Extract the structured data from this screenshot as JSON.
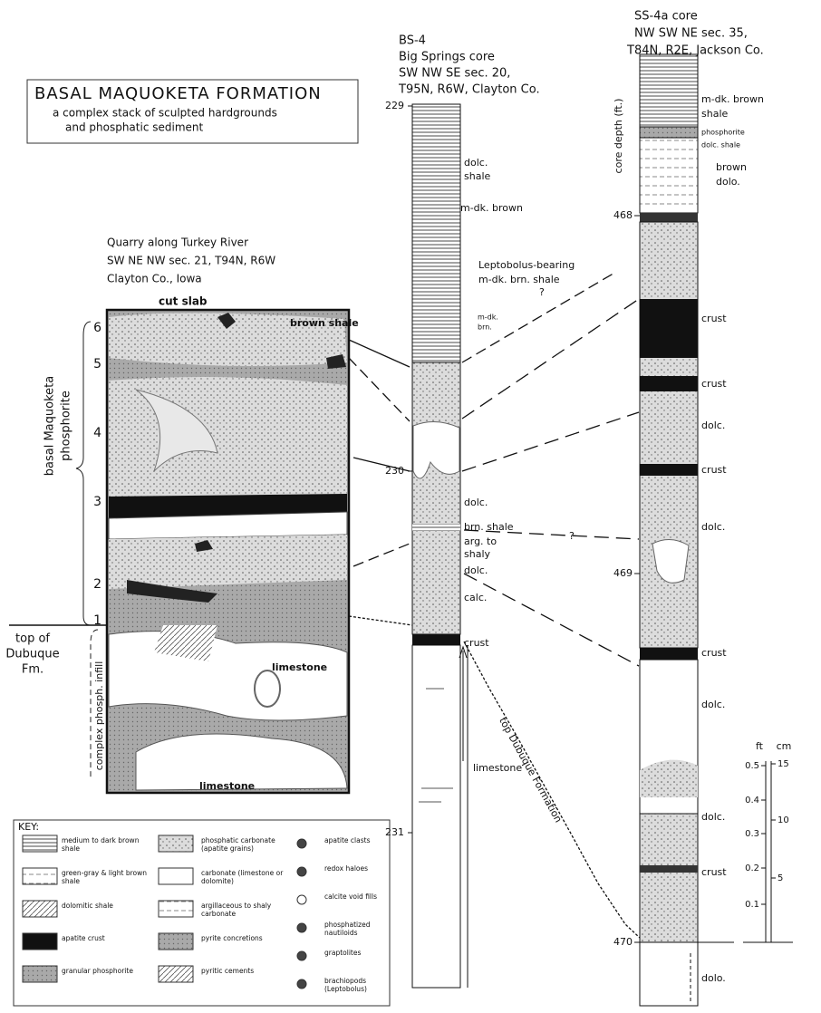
{
  "title_box": {
    "heading": "BASAL MAQUOKETA FORMATION",
    "lines": [
      "a complex stack of sculpted hardgrounds",
      "and phosphatic sediment"
    ]
  },
  "quarry": {
    "location": [
      "Quarry along Turkey River",
      "SW NE NW sec. 21, T94N, R6W",
      "Clayton Co., Iowa"
    ],
    "slab_label": "cut slab",
    "units": [
      "6",
      "5",
      "4",
      "3",
      "2",
      "1"
    ],
    "phosphorite_label": [
      "basal Maquoketa",
      "phosphorite"
    ],
    "dubuque_label": [
      "top of",
      "Dubuque",
      "Fm."
    ],
    "infill_label": "complex phosph. infill",
    "labels": [
      "brown shale",
      "limestone",
      "limestone"
    ]
  },
  "bs4": {
    "header": [
      "BS-4",
      "Big Springs core",
      "SW NW SE sec. 20,",
      "T95N, R6W, Clayton Co."
    ],
    "depths": [
      "229",
      "230",
      "231"
    ],
    "labels": [
      "dolc.",
      "shale",
      "m-dk. brown",
      "Leptobolus-bearing",
      "m-dk. brn. shale",
      "m-dk.",
      "brn.",
      "dolc.",
      "brn. shale",
      "arg. to",
      "shaly",
      "dolc.",
      "calc.",
      "crust",
      "limestone"
    ]
  },
  "ss4a": {
    "header": [
      "SS-4a core",
      "NW SW NE sec. 35,",
      "T84N, R2E, Jackson Co."
    ],
    "depth_label": "core depth (ft.)",
    "depths": [
      "468",
      "469",
      "470"
    ],
    "labels": [
      "m-dk. brown",
      "shale",
      "phosphorite",
      "dolc. shale",
      "brown",
      "dolo.",
      "crust",
      "crust",
      "dolc.",
      "crust",
      "dolc.",
      "crust",
      "dolc.",
      "dolc.",
      "crust",
      "dolo."
    ]
  },
  "correlation": {
    "question_marks": [
      "?",
      "?"
    ],
    "dubuque_top": "top Dubuque Formation"
  },
  "scale": {
    "units": [
      "ft",
      "cm"
    ],
    "ft_ticks": [
      "0.5",
      "0.4",
      "0.3",
      "0.2",
      "0.1"
    ],
    "cm_ticks": [
      "15",
      "10",
      "5"
    ]
  },
  "key": {
    "title": "KEY:",
    "items": [
      "medium to dark brown shale",
      "green-gray & light brown shale",
      "dolomitic shale",
      "apatite crust",
      "granular phosphorite",
      "phosphatic carbonate (apatite grains)",
      "carbonate (limestone or dolomite)",
      "argillaceous to shaly carbonate",
      "pyrite concretions",
      "pyritic cements",
      "apatite clasts",
      "redox haloes",
      "calcite void fills",
      "phosphatized nautiloids",
      "graptolites",
      "brachiopods (Leptobolus)"
    ]
  }
}
